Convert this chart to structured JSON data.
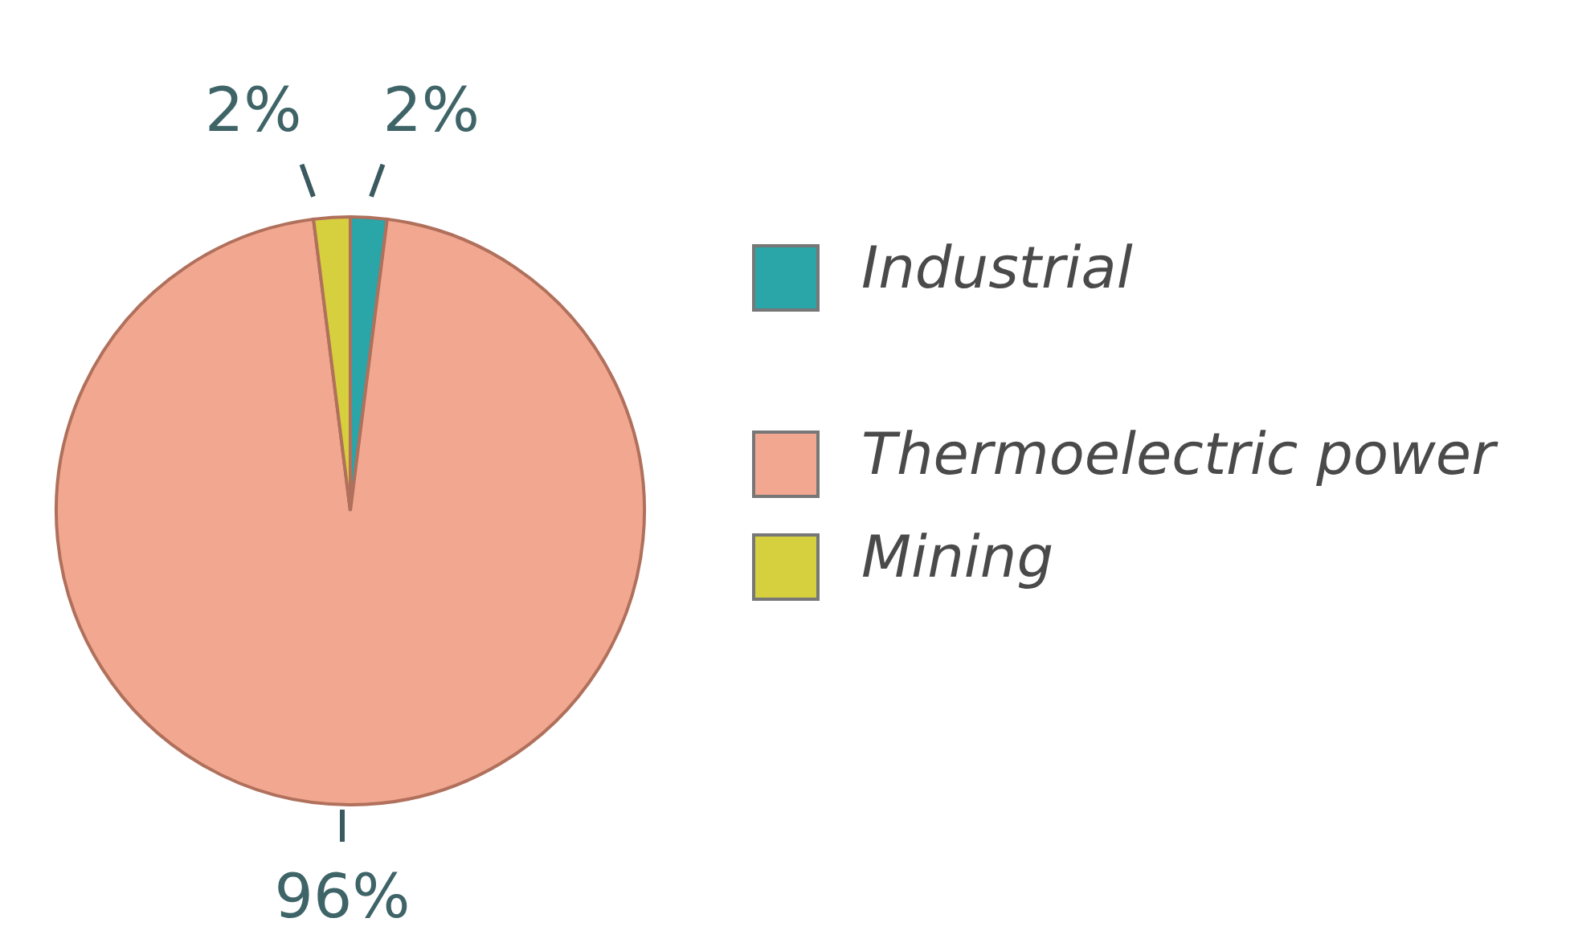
{
  "chart_data": {
    "type": "pie",
    "categories": [
      "Industrial",
      "Thermoelectric power",
      "Mining"
    ],
    "values": [
      2,
      96,
      2
    ],
    "value_labels": [
      "2%",
      "96%",
      "2%"
    ],
    "colors": [
      "#2aa5a8",
      "#f2a890",
      "#d6cf3e"
    ],
    "legend": "right"
  }
}
